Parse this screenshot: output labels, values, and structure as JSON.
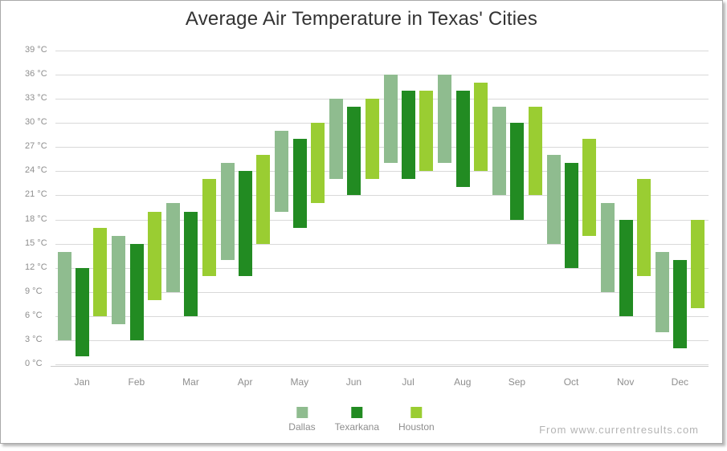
{
  "chart_data": {
    "type": "bar",
    "subtype": "range-column",
    "title": "Average Air Temperature in Texas' Cities",
    "categories": [
      "Jan",
      "Feb",
      "Mar",
      "Apr",
      "May",
      "Jun",
      "Jul",
      "Aug",
      "Sep",
      "Oct",
      "Nov",
      "Dec"
    ],
    "series": [
      {
        "name": "Dallas",
        "color": "#8FBC8F",
        "ranges": [
          [
            3,
            14
          ],
          [
            5,
            16
          ],
          [
            9,
            20
          ],
          [
            13,
            25
          ],
          [
            19,
            29
          ],
          [
            23,
            33
          ],
          [
            25,
            36
          ],
          [
            25,
            36
          ],
          [
            21,
            32
          ],
          [
            15,
            26
          ],
          [
            9,
            20
          ],
          [
            4,
            14
          ]
        ]
      },
      {
        "name": "Texarkana",
        "color": "#228B22",
        "ranges": [
          [
            1,
            12
          ],
          [
            3,
            15
          ],
          [
            6,
            19
          ],
          [
            11,
            24
          ],
          [
            17,
            28
          ],
          [
            21,
            32
          ],
          [
            23,
            34
          ],
          [
            22,
            34
          ],
          [
            18,
            30
          ],
          [
            12,
            25
          ],
          [
            6,
            18
          ],
          [
            2,
            13
          ]
        ]
      },
      {
        "name": "Houston",
        "color": "#9ACD32",
        "ranges": [
          [
            6,
            17
          ],
          [
            8,
            19
          ],
          [
            11,
            23
          ],
          [
            15,
            26
          ],
          [
            20,
            30
          ],
          [
            23,
            33
          ],
          [
            24,
            34
          ],
          [
            24,
            35
          ],
          [
            21,
            32
          ],
          [
            16,
            28
          ],
          [
            11,
            23
          ],
          [
            7,
            18
          ]
        ]
      }
    ],
    "y_axis": {
      "min": 0,
      "max": 39,
      "step": 3,
      "unit": "°C",
      "tick_format": "{value} °C"
    },
    "x_axis": {
      "label": ""
    },
    "grid": true,
    "legend_position": "bottom",
    "colors": {
      "title": "#333333",
      "axis_labels": "#8e8e8e",
      "gridlines": "#d9d9d9",
      "frame_border": "#a9a9a9"
    }
  },
  "attribution": "From www.currentresults.com"
}
